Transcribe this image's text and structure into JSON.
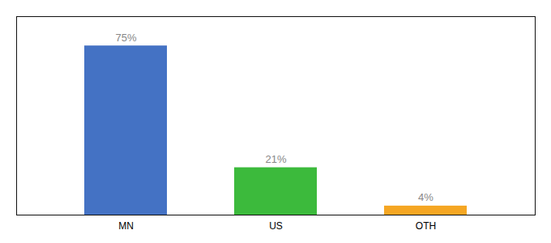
{
  "chart_data": {
    "type": "bar",
    "categories": [
      "MN",
      "US",
      "OTH"
    ],
    "values": [
      75,
      21,
      4
    ],
    "value_labels": [
      "75%",
      "21%",
      "4%"
    ],
    "colors": [
      "#4472c4",
      "#3cba3c",
      "#f5a623"
    ],
    "ylim": [
      0,
      88
    ],
    "data_labels": true,
    "tick_labels": "x",
    "grid": false
  }
}
